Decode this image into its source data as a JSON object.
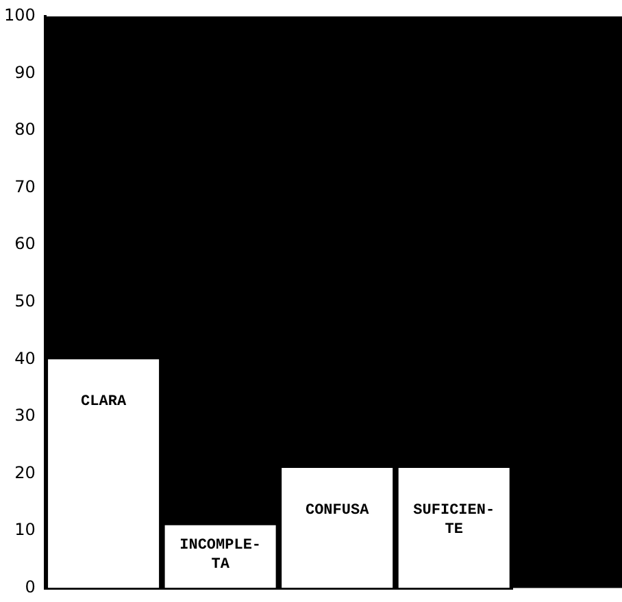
{
  "chart_data": {
    "type": "bar",
    "categories": [
      "CLARA",
      "INCOMPLE-\nTA",
      "CONFUSA",
      "SUFICIEN-\nTE"
    ],
    "values": [
      40,
      11,
      21,
      21
    ],
    "color": "#ffffff",
    "ylim": [
      0,
      100
    ],
    "yticks": [
      0,
      10,
      20,
      30,
      40,
      50,
      60,
      70,
      80,
      90,
      100
    ],
    "grid": false,
    "legend": false,
    "tick_labels": "y"
  }
}
